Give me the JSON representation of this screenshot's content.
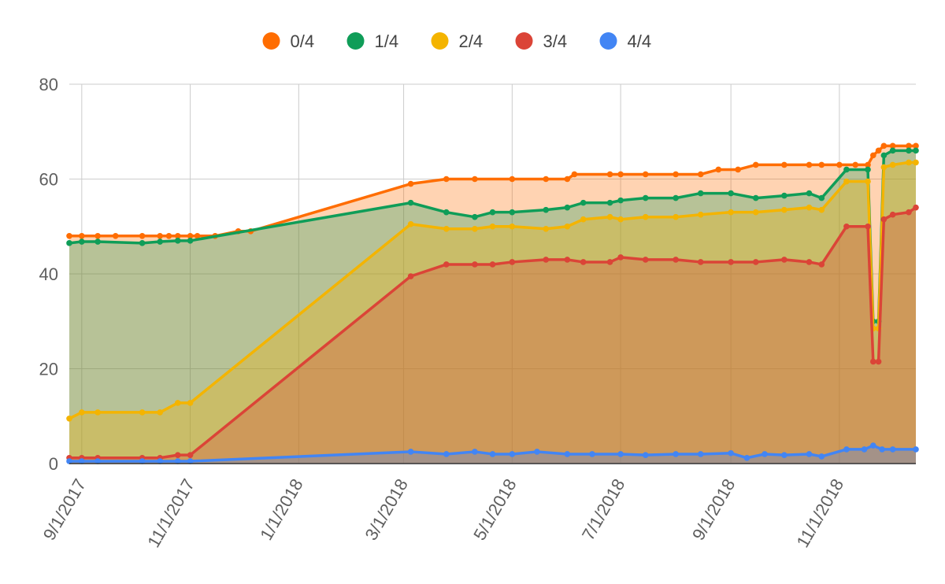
{
  "chart_data": {
    "type": "area",
    "stacked": true,
    "title": "",
    "xlabel": "",
    "ylabel": "",
    "legend_position": "top",
    "grid": true,
    "x_range": [
      "2017-08-25",
      "2018-12-14"
    ],
    "ylim": [
      0,
      80
    ],
    "y_ticks": [
      0,
      20,
      40,
      60,
      80
    ],
    "x_tick_labels": [
      "9/1/2017",
      "11/1/2017",
      "1/1/2018",
      "3/1/2018",
      "5/1/2018",
      "7/1/2018",
      "9/1/2018",
      "11/1/2018"
    ],
    "x_tick_dates": [
      "2017-09-01",
      "2017-11-01",
      "2018-01-01",
      "2018-03-01",
      "2018-05-01",
      "2018-07-01",
      "2018-09-01",
      "2018-11-01"
    ],
    "series": [
      {
        "name": "0/4",
        "color": "#ff6d01",
        "points": [
          [
            "2017-08-25",
            48
          ],
          [
            "2017-09-01",
            48
          ],
          [
            "2017-09-10",
            48
          ],
          [
            "2017-09-20",
            48
          ],
          [
            "2017-10-05",
            48
          ],
          [
            "2017-10-15",
            48
          ],
          [
            "2017-10-20",
            48
          ],
          [
            "2017-10-25",
            48
          ],
          [
            "2017-11-01",
            48
          ],
          [
            "2017-11-05",
            48
          ],
          [
            "2017-11-15",
            48
          ],
          [
            "2017-11-28",
            49
          ],
          [
            "2017-12-05",
            49
          ],
          [
            "2018-03-05",
            59
          ],
          [
            "2018-03-25",
            60
          ],
          [
            "2018-04-10",
            60
          ],
          [
            "2018-05-01",
            60
          ],
          [
            "2018-05-20",
            60
          ],
          [
            "2018-06-01",
            60
          ],
          [
            "2018-06-05",
            61
          ],
          [
            "2018-06-25",
            61
          ],
          [
            "2018-07-01",
            61
          ],
          [
            "2018-07-15",
            61
          ],
          [
            "2018-08-01",
            61
          ],
          [
            "2018-08-15",
            61
          ],
          [
            "2018-08-25",
            62
          ],
          [
            "2018-09-05",
            62
          ],
          [
            "2018-09-15",
            63
          ],
          [
            "2018-10-01",
            63
          ],
          [
            "2018-10-15",
            63
          ],
          [
            "2018-10-22",
            63
          ],
          [
            "2018-11-01",
            63
          ],
          [
            "2018-11-10",
            63
          ],
          [
            "2018-11-17",
            63
          ],
          [
            "2018-11-20",
            65
          ],
          [
            "2018-11-23",
            66
          ],
          [
            "2018-11-26",
            67
          ],
          [
            "2018-12-01",
            67
          ],
          [
            "2018-12-10",
            67
          ],
          [
            "2018-12-14",
            67
          ]
        ]
      },
      {
        "name": "1/4",
        "color": "#0f9d58",
        "points": [
          [
            "2017-08-25",
            46.5
          ],
          [
            "2017-09-01",
            46.8
          ],
          [
            "2017-09-10",
            46.8
          ],
          [
            "2017-10-05",
            46.5
          ],
          [
            "2017-10-15",
            46.8
          ],
          [
            "2017-10-25",
            47
          ],
          [
            "2017-11-01",
            47
          ],
          [
            "2018-03-05",
            55
          ],
          [
            "2018-03-25",
            53
          ],
          [
            "2018-04-10",
            52
          ],
          [
            "2018-04-20",
            53
          ],
          [
            "2018-05-01",
            53
          ],
          [
            "2018-05-20",
            53.5
          ],
          [
            "2018-06-01",
            54
          ],
          [
            "2018-06-10",
            55
          ],
          [
            "2018-06-25",
            55
          ],
          [
            "2018-07-01",
            55.5
          ],
          [
            "2018-07-15",
            56
          ],
          [
            "2018-08-01",
            56
          ],
          [
            "2018-08-15",
            57
          ],
          [
            "2018-09-01",
            57
          ],
          [
            "2018-09-15",
            56
          ],
          [
            "2018-10-01",
            56.5
          ],
          [
            "2018-10-15",
            57
          ],
          [
            "2018-10-22",
            56
          ],
          [
            "2018-11-05",
            62
          ],
          [
            "2018-11-17",
            62
          ],
          [
            "2018-11-20",
            30
          ],
          [
            "2018-11-23",
            30
          ],
          [
            "2018-11-26",
            65
          ],
          [
            "2018-12-01",
            66
          ],
          [
            "2018-12-10",
            66
          ],
          [
            "2018-12-14",
            66
          ]
        ]
      },
      {
        "name": "2/4",
        "color": "#f4b400",
        "points": [
          [
            "2017-08-25",
            9.5
          ],
          [
            "2017-09-01",
            10.8
          ],
          [
            "2017-09-10",
            10.8
          ],
          [
            "2017-10-05",
            10.8
          ],
          [
            "2017-10-15",
            10.8
          ],
          [
            "2017-10-25",
            12.8
          ],
          [
            "2017-11-01",
            12.8
          ],
          [
            "2018-03-05",
            50.5
          ],
          [
            "2018-03-25",
            49.5
          ],
          [
            "2018-04-10",
            49.5
          ],
          [
            "2018-04-20",
            50
          ],
          [
            "2018-05-01",
            50
          ],
          [
            "2018-05-20",
            49.5
          ],
          [
            "2018-06-01",
            50
          ],
          [
            "2018-06-10",
            51.5
          ],
          [
            "2018-06-25",
            52
          ],
          [
            "2018-07-01",
            51.5
          ],
          [
            "2018-07-15",
            52
          ],
          [
            "2018-08-01",
            52
          ],
          [
            "2018-08-15",
            52.5
          ],
          [
            "2018-09-01",
            53
          ],
          [
            "2018-09-15",
            53
          ],
          [
            "2018-10-01",
            53.5
          ],
          [
            "2018-10-15",
            54
          ],
          [
            "2018-10-22",
            53.5
          ],
          [
            "2018-11-05",
            59.5
          ],
          [
            "2018-11-17",
            59.5
          ],
          [
            "2018-11-20",
            28.5
          ],
          [
            "2018-11-23",
            28.5
          ],
          [
            "2018-11-26",
            62.5
          ],
          [
            "2018-12-01",
            63
          ],
          [
            "2018-12-10",
            63.5
          ],
          [
            "2018-12-14",
            63.5
          ]
        ]
      },
      {
        "name": "3/4",
        "color": "#db4437",
        "points": [
          [
            "2017-08-25",
            1.2
          ],
          [
            "2017-09-01",
            1.2
          ],
          [
            "2017-09-10",
            1.2
          ],
          [
            "2017-10-05",
            1.2
          ],
          [
            "2017-10-15",
            1.2
          ],
          [
            "2017-10-25",
            1.8
          ],
          [
            "2017-11-01",
            1.8
          ],
          [
            "2018-03-05",
            39.5
          ],
          [
            "2018-03-25",
            42
          ],
          [
            "2018-04-10",
            42
          ],
          [
            "2018-04-20",
            42
          ],
          [
            "2018-05-01",
            42.5
          ],
          [
            "2018-05-20",
            43
          ],
          [
            "2018-06-01",
            43
          ],
          [
            "2018-06-10",
            42.5
          ],
          [
            "2018-06-25",
            42.5
          ],
          [
            "2018-07-01",
            43.5
          ],
          [
            "2018-07-15",
            43
          ],
          [
            "2018-08-01",
            43
          ],
          [
            "2018-08-15",
            42.5
          ],
          [
            "2018-09-01",
            42.5
          ],
          [
            "2018-09-15",
            42.5
          ],
          [
            "2018-10-01",
            43
          ],
          [
            "2018-10-15",
            42.5
          ],
          [
            "2018-10-22",
            42
          ],
          [
            "2018-11-05",
            50
          ],
          [
            "2018-11-17",
            50
          ],
          [
            "2018-11-20",
            21.5
          ],
          [
            "2018-11-23",
            21.5
          ],
          [
            "2018-11-26",
            51.5
          ],
          [
            "2018-12-01",
            52.5
          ],
          [
            "2018-12-10",
            53
          ],
          [
            "2018-12-14",
            54
          ]
        ]
      },
      {
        "name": "4/4",
        "color": "#4285f4",
        "points": [
          [
            "2017-08-25",
            0.5
          ],
          [
            "2017-09-01",
            0.5
          ],
          [
            "2017-09-10",
            0.5
          ],
          [
            "2017-10-05",
            0.5
          ],
          [
            "2017-10-15",
            0.5
          ],
          [
            "2017-10-25",
            0.5
          ],
          [
            "2017-11-01",
            0.5
          ],
          [
            "2018-03-05",
            2.5
          ],
          [
            "2018-03-25",
            2
          ],
          [
            "2018-04-10",
            2.5
          ],
          [
            "2018-04-20",
            2
          ],
          [
            "2018-05-01",
            2
          ],
          [
            "2018-05-15",
            2.5
          ],
          [
            "2018-06-01",
            2
          ],
          [
            "2018-06-15",
            2
          ],
          [
            "2018-07-01",
            2
          ],
          [
            "2018-07-15",
            1.8
          ],
          [
            "2018-08-01",
            2
          ],
          [
            "2018-08-15",
            2
          ],
          [
            "2018-09-01",
            2.2
          ],
          [
            "2018-09-10",
            1.2
          ],
          [
            "2018-09-20",
            2
          ],
          [
            "2018-10-01",
            1.8
          ],
          [
            "2018-10-15",
            2
          ],
          [
            "2018-10-22",
            1.5
          ],
          [
            "2018-11-05",
            3
          ],
          [
            "2018-11-15",
            3
          ],
          [
            "2018-11-20",
            3.8
          ],
          [
            "2018-11-25",
            3
          ],
          [
            "2018-12-01",
            3
          ],
          [
            "2018-12-14",
            3
          ]
        ]
      }
    ]
  }
}
